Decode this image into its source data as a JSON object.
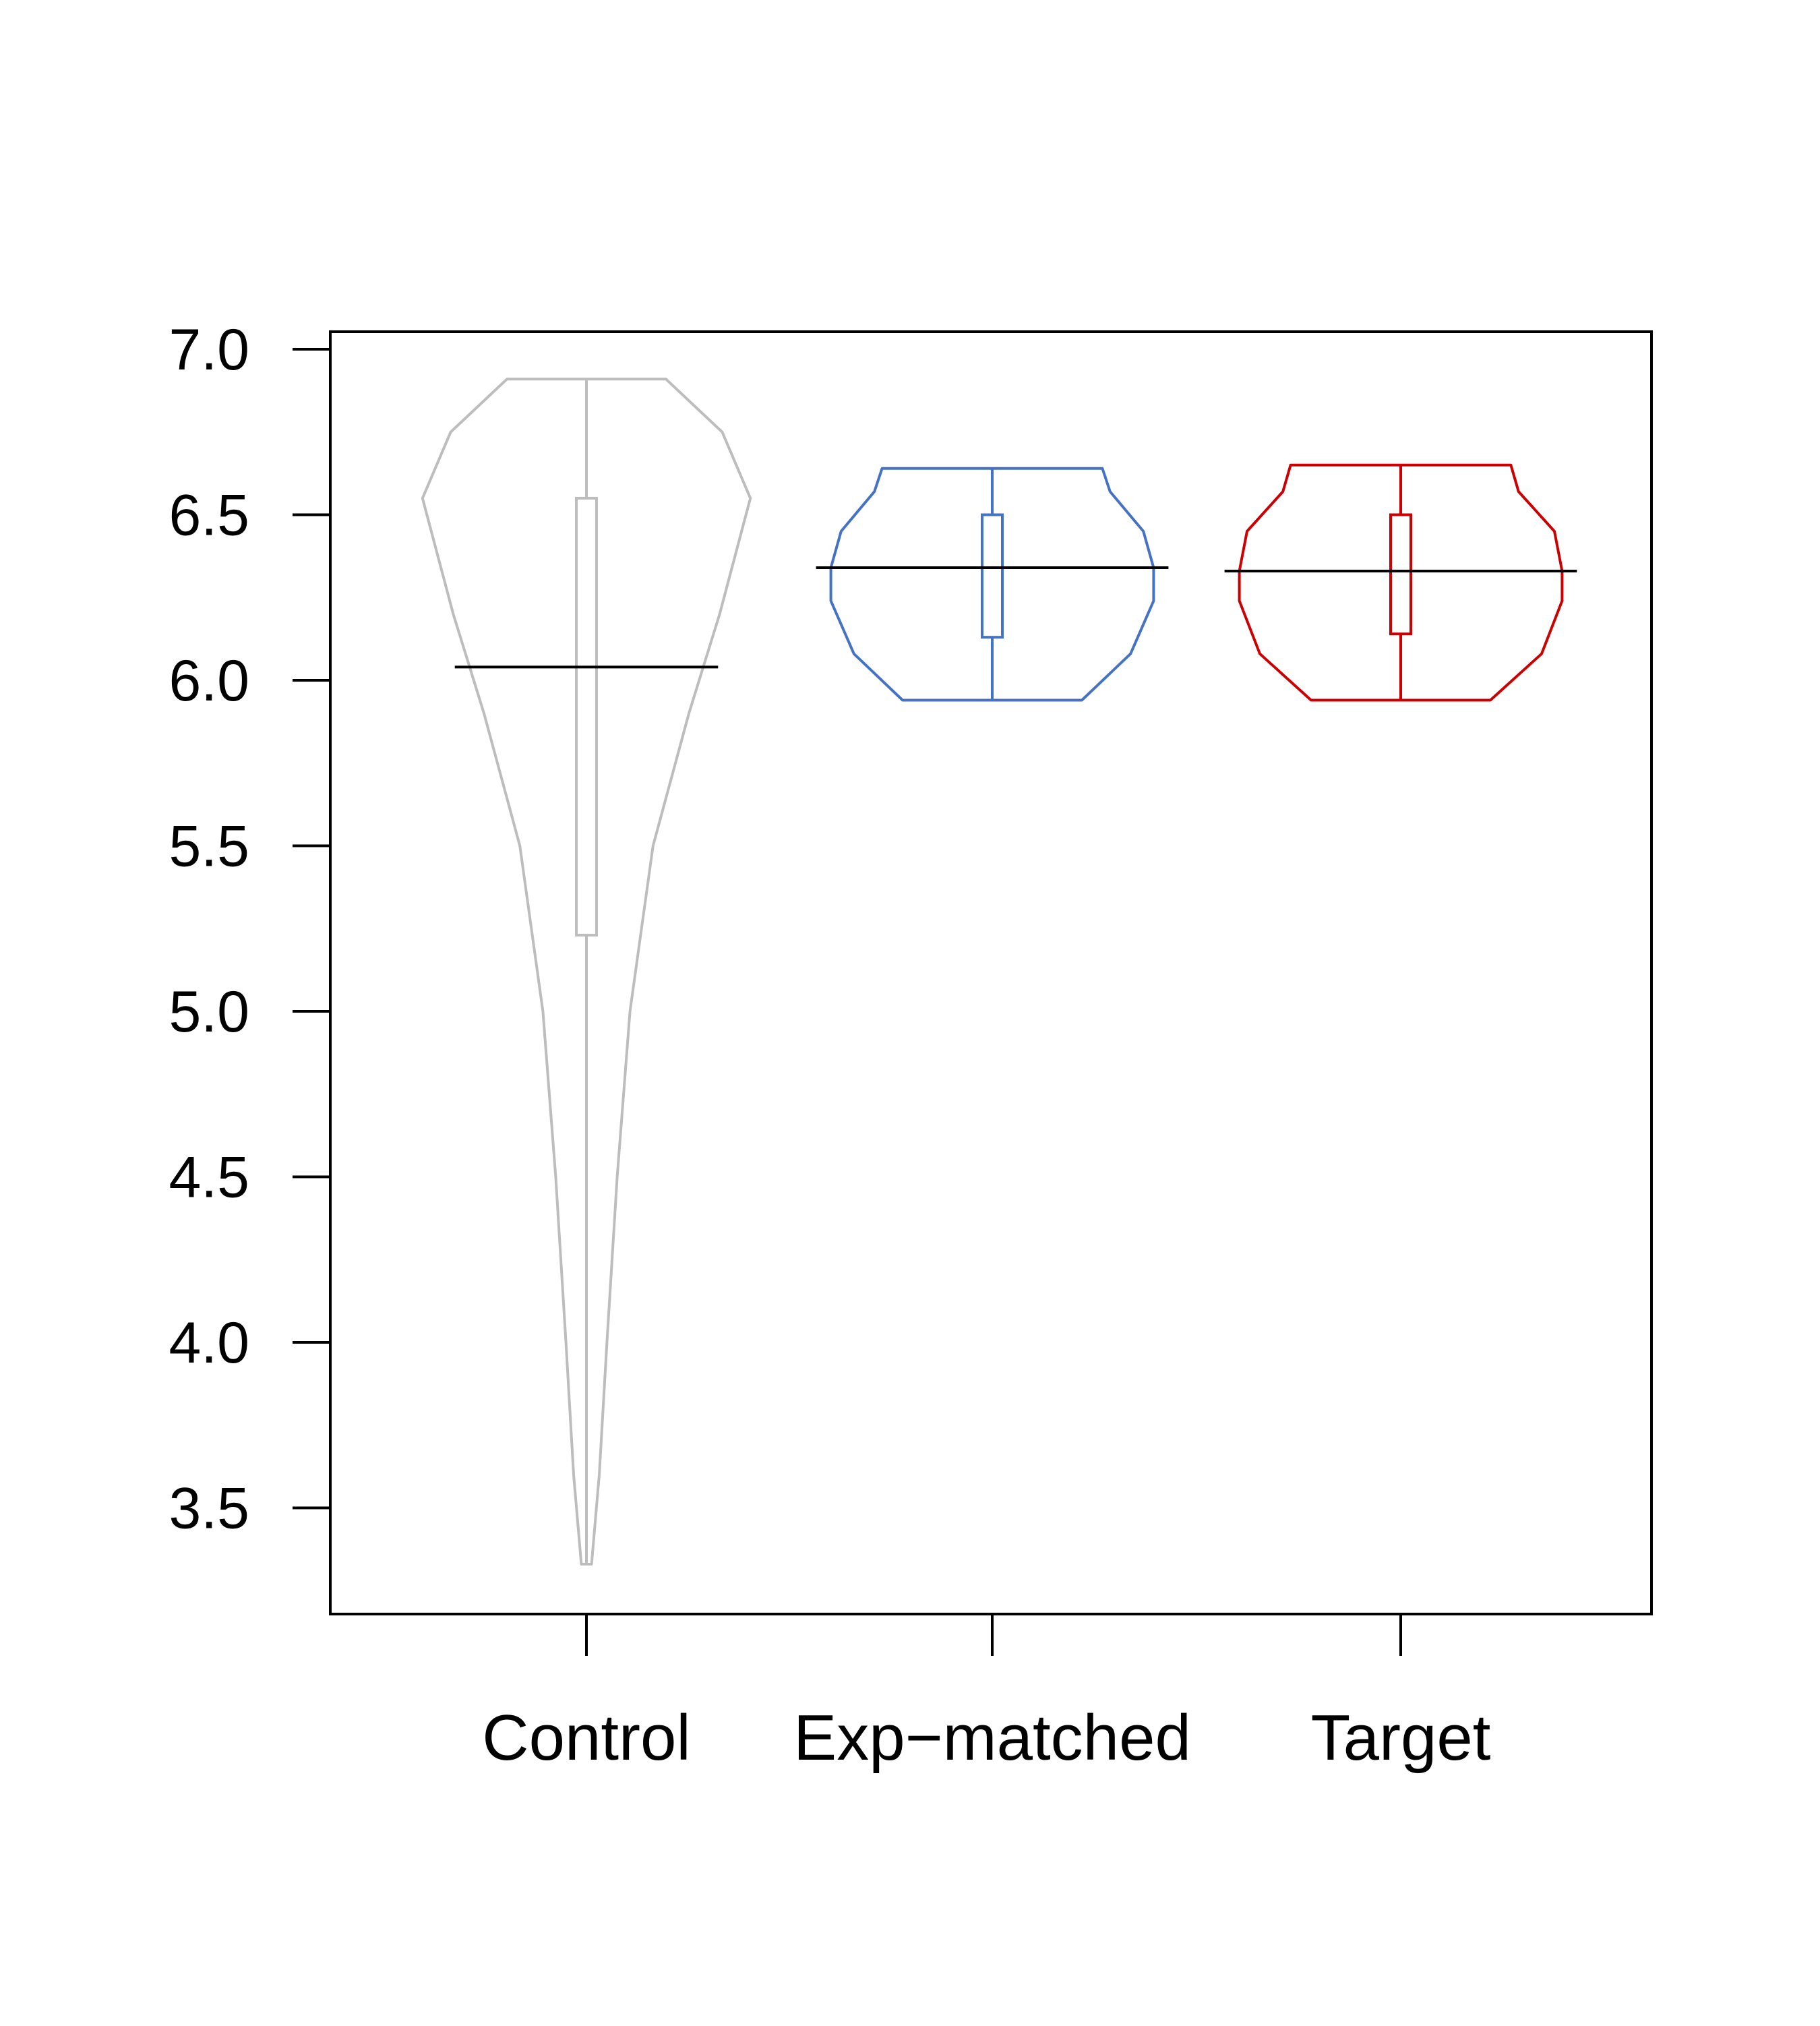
{
  "chart_data": {
    "type": "violin",
    "title": "",
    "xlabel": "",
    "ylabel": "",
    "ylim": [
      3.2,
      7.05
    ],
    "yticks": [
      3.5,
      4.0,
      4.5,
      5.0,
      5.5,
      6.0,
      6.5,
      7.0
    ],
    "ytick_labels": [
      "3.5",
      "4.0",
      "4.5",
      "5.0",
      "5.5",
      "6.0",
      "6.5",
      "7.0"
    ],
    "categories": [
      "Control",
      "Exp−matched",
      "Target"
    ],
    "series": [
      {
        "color": "#bdbdbd",
        "min": 3.33,
        "q1": 5.23,
        "median": 6.04,
        "q3": 6.55,
        "max": 6.91,
        "density_profile": [
          [
            3.33,
            0.02
          ],
          [
            3.6,
            0.05
          ],
          [
            4.0,
            0.08
          ],
          [
            4.5,
            0.12
          ],
          [
            5.0,
            0.17
          ],
          [
            5.5,
            0.26
          ],
          [
            5.9,
            0.4
          ],
          [
            6.2,
            0.52
          ],
          [
            6.55,
            0.64
          ],
          [
            6.75,
            0.53
          ],
          [
            6.91,
            0.31
          ]
        ]
      },
      {
        "color": "#4472c4",
        "min": 5.94,
        "q1": 6.13,
        "median": 6.34,
        "q3": 6.5,
        "max": 6.64,
        "density_profile": [
          [
            5.94,
            0.35
          ],
          [
            6.08,
            0.54
          ],
          [
            6.24,
            0.63
          ],
          [
            6.34,
            0.63
          ],
          [
            6.45,
            0.59
          ],
          [
            6.57,
            0.46
          ],
          [
            6.64,
            0.43
          ]
        ]
      },
      {
        "color": "#cc0000",
        "min": 5.94,
        "q1": 6.14,
        "median": 6.33,
        "q3": 6.5,
        "max": 6.65,
        "density_profile": [
          [
            5.94,
            0.35
          ],
          [
            6.08,
            0.55
          ],
          [
            6.24,
            0.63
          ],
          [
            6.33,
            0.63
          ],
          [
            6.45,
            0.6
          ],
          [
            6.57,
            0.46
          ],
          [
            6.65,
            0.43
          ]
        ]
      }
    ],
    "legend": "none",
    "grid": false
  }
}
